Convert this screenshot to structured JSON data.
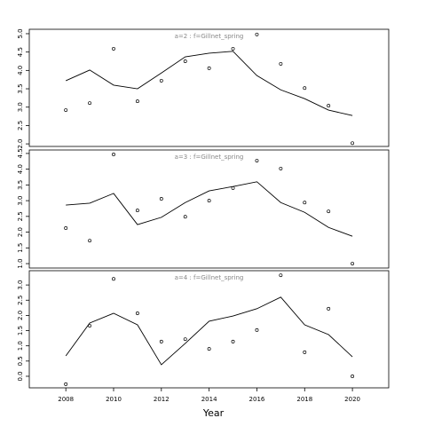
{
  "chart_data": [
    {
      "type": "line",
      "title": "a=2 : f=Gillnet_spring",
      "x": [
        2008,
        2009,
        2010,
        2011,
        2012,
        2013,
        2014,
        2015,
        2016,
        2017,
        2018,
        2019,
        2020
      ],
      "series": [
        {
          "mode": "markers",
          "color": "#000000",
          "values": [
            2.92,
            3.11,
            4.59,
            3.16,
            3.72,
            4.25,
            4.06,
            4.59,
            4.98,
            4.18,
            3.52,
            3.04,
            2.02
          ]
        },
        {
          "mode": "lines",
          "color": "#000000",
          "values": [
            3.72,
            4.01,
            3.6,
            3.5,
            3.93,
            4.37,
            4.47,
            4.52,
            3.86,
            3.47,
            3.23,
            2.92,
            2.77
          ]
        }
      ],
      "xlim": [
        2006.47,
        2021.52
      ],
      "ylim": [
        1.93,
        5.12
      ],
      "yticks": [
        {
          "value": 2,
          "label": "2.0"
        },
        2.5,
        {
          "value": 3,
          "label": "3.0"
        },
        3.5,
        {
          "value": 4,
          "label": "4.0"
        },
        4.5,
        {
          "value": 5,
          "label": "5.0"
        }
      ]
    },
    {
      "type": "line",
      "title": "a=3 : f=Gillnet_spring",
      "x": [
        2008,
        2009,
        2010,
        2011,
        2012,
        2013,
        2014,
        2015,
        2016,
        2017,
        2018,
        2019,
        2020
      ],
      "series": [
        {
          "mode": "markers",
          "color": "#000000",
          "values": [
            2.13,
            1.73,
            4.47,
            2.69,
            3.06,
            2.49,
            3.0,
            3.4,
            4.27,
            4.02,
            2.94,
            2.66,
            1.0
          ]
        },
        {
          "mode": "lines",
          "color": "#000000",
          "values": [
            2.86,
            2.92,
            3.23,
            2.24,
            2.47,
            2.94,
            3.31,
            3.45,
            3.6,
            2.94,
            2.63,
            2.15,
            1.87
          ]
        }
      ],
      "xlim": [
        2006.47,
        2021.52
      ],
      "ylim": [
        0.86,
        4.61
      ],
      "yticks": [
        {
          "value": 1,
          "label": "1.0"
        },
        1.5,
        {
          "value": 2,
          "label": "2.0"
        },
        2.5,
        {
          "value": 3,
          "label": "3.0"
        },
        3.5,
        {
          "value": 4,
          "label": "4.0"
        },
        4.5
      ]
    },
    {
      "type": "line",
      "title": "a=4 : f=Gillnet_spring",
      "x": [
        2008,
        2009,
        2010,
        2011,
        2012,
        2013,
        2014,
        2015,
        2016,
        2017,
        2018,
        2019,
        2020
      ],
      "series": [
        {
          "mode": "markers",
          "color": "#000000",
          "values": [
            -0.26,
            1.66,
            3.2,
            2.07,
            1.14,
            1.22,
            0.9,
            1.14,
            1.52,
            3.32,
            0.79,
            2.22,
            0.0
          ]
        },
        {
          "mode": "lines",
          "color": "#000000",
          "values": [
            0.67,
            1.75,
            2.07,
            1.69,
            0.38,
            1.08,
            1.81,
            1.98,
            2.22,
            2.6,
            1.69,
            1.37,
            0.64
          ]
        }
      ],
      "xlim": [
        2006.47,
        2021.52
      ],
      "ylim": [
        -0.38,
        3.47
      ],
      "yticks": [
        {
          "value": 0,
          "label": "0.0"
        },
        0.5,
        {
          "value": 1,
          "label": "1.0"
        },
        1.5,
        {
          "value": 2,
          "label": "2.0"
        },
        2.5,
        {
          "value": 3,
          "label": "3.0"
        }
      ],
      "xticks": [
        2008,
        2010,
        2012,
        2014,
        2016,
        2018,
        2020
      ],
      "x_label": "Year"
    }
  ]
}
